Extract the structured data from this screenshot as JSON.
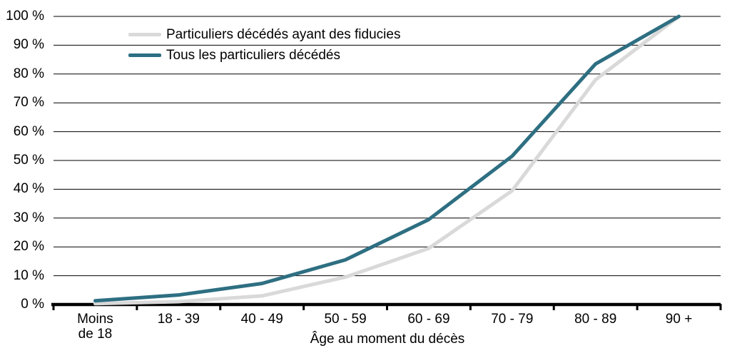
{
  "chart_data": {
    "type": "line",
    "title": "",
    "xlabel": "Âge au moment du décès",
    "ylabel": "",
    "categories": [
      "Moins de 18",
      "18 - 39",
      "40 - 49",
      "50 - 59",
      "60 - 69",
      "70 - 79",
      "80 - 89",
      "90 +"
    ],
    "series": [
      {
        "name": "Particuliers décédés ayant des fiducies",
        "color": "#d9d9d9",
        "values": [
          0.3,
          1,
          3,
          9.5,
          19.5,
          39.5,
          78,
          100
        ]
      },
      {
        "name": "Tous les particuliers décédés",
        "color": "#2e6f82",
        "values": [
          1.3,
          3.3,
          7.3,
          15.5,
          29.5,
          51.5,
          83.5,
          100
        ]
      }
    ],
    "ylim": [
      0,
      100
    ],
    "ytick_step": 10,
    "ytick_labels": [
      "0 %",
      "10 %",
      "20 %",
      "30 %",
      "40 %",
      "50 %",
      "60 %",
      "70 %",
      "80 %",
      "90 %",
      "100 %"
    ],
    "grid": true,
    "legend_position": "top-left",
    "axis_color": "#000000",
    "grid_color": "#000000"
  }
}
